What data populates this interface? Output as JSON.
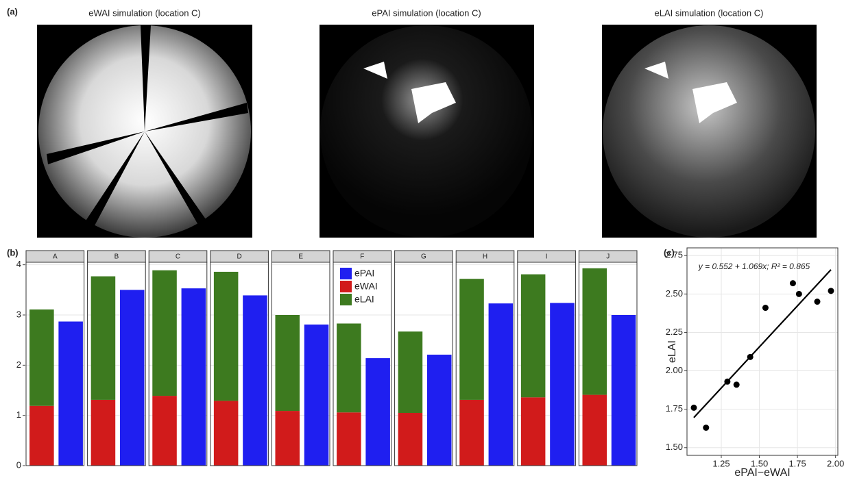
{
  "figure": {
    "panel_label": "(a)",
    "images": [
      {
        "title": "eWAI simulation (location C)"
      },
      {
        "title": "ePAI simulation (location C)"
      },
      {
        "title": "eLAI simulation (location C)"
      }
    ]
  },
  "chart_data": [
    {
      "type": "bar",
      "panel_label": "(b)",
      "facets": [
        "A",
        "B",
        "C",
        "D",
        "E",
        "F",
        "G",
        "H",
        "I",
        "J"
      ],
      "series": [
        {
          "name": "ePAI",
          "color": "#1f1ff0",
          "bar": 1,
          "values": [
            2.87,
            3.5,
            3.53,
            3.39,
            2.81,
            2.14,
            2.21,
            3.23,
            3.24,
            3.0
          ]
        },
        {
          "name": "eWAI",
          "color": "#d11b1b",
          "bar": 0,
          "values": [
            1.19,
            1.31,
            1.39,
            1.29,
            1.09,
            1.06,
            1.05,
            1.31,
            1.36,
            1.41
          ]
        },
        {
          "name": "eLAI",
          "color": "#3d7a1f",
          "bar": 0,
          "values": [
            1.92,
            2.46,
            2.5,
            2.57,
            1.91,
            1.77,
            1.62,
            2.41,
            2.45,
            2.52
          ]
        }
      ],
      "ylim": [
        0,
        4.05
      ],
      "yticks": [
        0,
        1,
        2,
        3,
        4
      ],
      "grid": true
    },
    {
      "type": "scatter",
      "panel_label": "(c)",
      "x_label": "ePAI−eWAI",
      "y_label": "eLAI",
      "annotation": "y = 0.552 + 1.069x;  R² = 0.865",
      "x": [
        1.07,
        1.15,
        1.29,
        1.35,
        1.44,
        1.54,
        1.72,
        1.76,
        1.88,
        1.97
      ],
      "values": [
        1.76,
        1.63,
        1.93,
        1.91,
        2.09,
        2.41,
        2.57,
        2.5,
        2.45,
        2.52
      ],
      "color": "#000000",
      "fit": {
        "intercept": 0.552,
        "slope": 1.069
      },
      "xlim": [
        1.025,
        2.015
      ],
      "xticks": [
        1.25,
        {
          "value": 1.5,
          "label": "1.50"
        },
        1.75,
        {
          "value": 2,
          "label": "2.00"
        }
      ],
      "ylim": [
        1.45,
        2.8
      ],
      "yticks": [
        {
          "value": 1.5,
          "label": "1.50"
        },
        1.75,
        {
          "value": 2,
          "label": "2.00"
        },
        2.25,
        {
          "value": 2.5,
          "label": "2.50"
        },
        2.75
      ],
      "grid": true
    }
  ]
}
